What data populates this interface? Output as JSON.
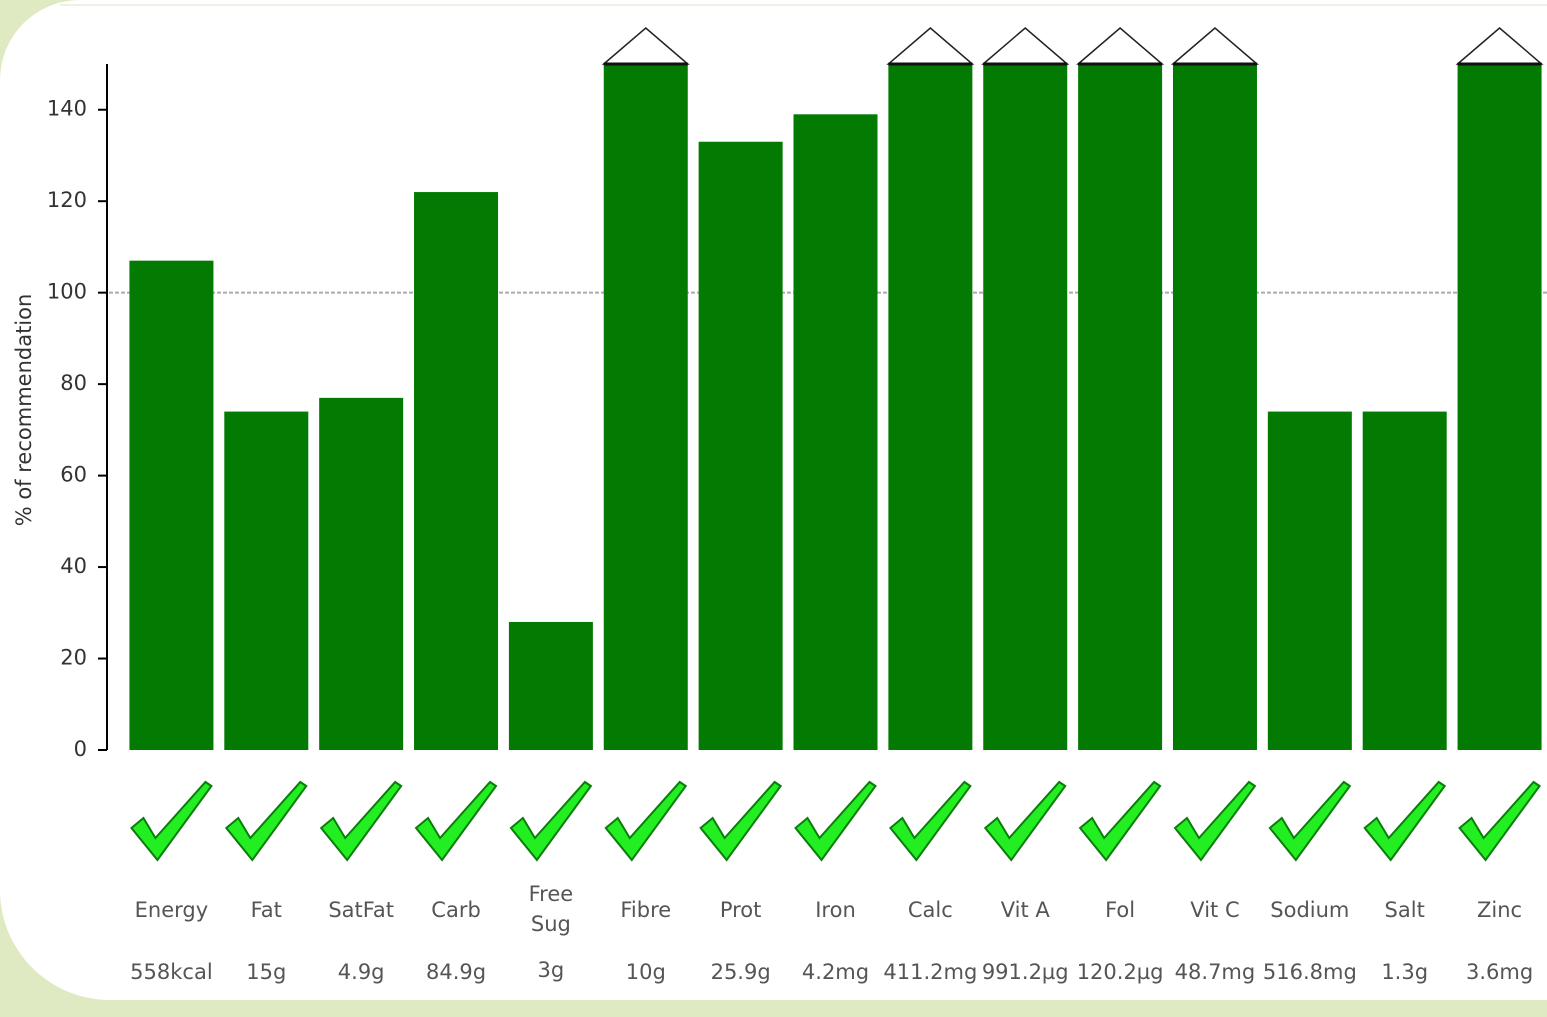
{
  "chart_data": {
    "type": "bar",
    "y_label": "% of recommendation",
    "categories": [
      "Energy",
      "Fat",
      "SatFat",
      "Carb",
      "Free Sug",
      "Fibre",
      "Prot",
      "Iron",
      "Calc",
      "Vit A",
      "Fol",
      "Vit C",
      "Sodium",
      "Salt",
      "Zinc"
    ],
    "values": [
      107,
      74,
      77,
      122,
      28,
      150,
      133,
      139,
      150,
      150,
      150,
      150,
      74,
      74,
      150
    ],
    "amounts": [
      "558kcal",
      "15g",
      "4.9g",
      "84.9g",
      "3g",
      "10g",
      "25.9g",
      "4.2mg",
      "411.2mg",
      "991.2µg",
      "120.2µg",
      "48.7mg",
      "516.8mg",
      "1.3g",
      "3.6mg"
    ],
    "color": "#037b03",
    "ylim": [
      0,
      150
    ],
    "yticks": [
      0,
      20,
      40,
      60,
      80,
      100,
      120,
      140
    ],
    "reference_line": 100,
    "overflow_marker": true
  }
}
